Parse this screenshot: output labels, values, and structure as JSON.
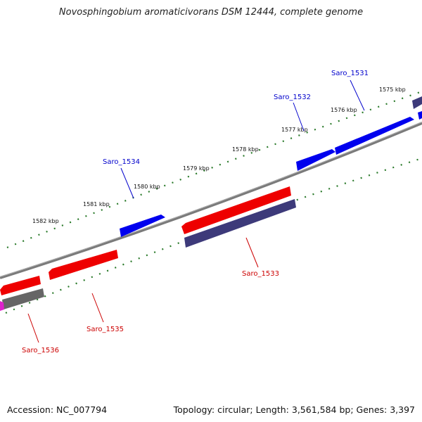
{
  "title": "Novosphingobium aromaticivorans DSM 12444, complete genome",
  "footer": {
    "accession": "Accession: NC_007794",
    "topology": "Topology: circular; Length: 3,561,584 bp; Genes: 3,397"
  },
  "scale_labels": [
    "1575 kbp",
    "1576 kbp",
    "1577 kbp",
    "1578 kbp",
    "1579 kbp",
    "1580 kbp",
    "1581 kbp",
    "1582 kbp"
  ],
  "genes": [
    {
      "label": "Saro_1531",
      "color": "#0000cc"
    },
    {
      "label": "Saro_1532",
      "color": "#0000cc"
    },
    {
      "label": "Saro_1533",
      "color": "#cc0000"
    },
    {
      "label": "Saro_1534",
      "color": "#0000cc"
    },
    {
      "label": "Saro_1535",
      "color": "#cc0000"
    },
    {
      "label": "Saro_1536",
      "color": "#cc0000"
    }
  ],
  "colors": {
    "forward_gene": "#0000ff",
    "reverse_gene": "#ee0000",
    "reverse_gene_dark": "#3d3a7a",
    "gray_gene": "#666666",
    "backbone": "#808080",
    "tick": "#2a7a2a"
  }
}
